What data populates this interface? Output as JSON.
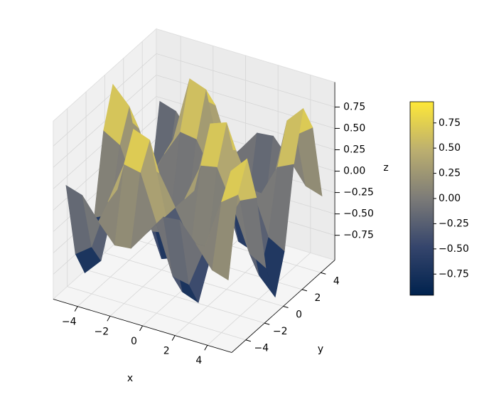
{
  "chart_data": {
    "type": "surface3d",
    "x_label": "x",
    "y_label": "y",
    "z_label": "z",
    "x": [
      -5,
      -4,
      -3,
      -2,
      -1,
      0,
      1,
      2,
      3,
      4,
      5
    ],
    "y": [
      -5,
      -4,
      -3,
      -2,
      -1,
      0,
      1,
      2,
      3,
      4,
      5
    ],
    "z": [
      [
        0.27,
        0.21,
        -0.04,
        -0.26,
        -0.24,
        0,
        0.24,
        0.26,
        0.04,
        -0.21,
        -0.27
      ],
      [
        -0.63,
        -0.49,
        0.09,
        0.59,
        0.55,
        0,
        -0.55,
        -0.59,
        -0.09,
        0.49,
        0.63
      ],
      [
        -0.95,
        -0.75,
        0.14,
        0.9,
        0.83,
        0,
        -0.83,
        -0.9,
        -0.14,
        0.75,
        0.95
      ],
      [
        -0.4,
        -0.31,
        0.06,
        0.38,
        0.35,
        0,
        -0.35,
        -0.38,
        -0.06,
        0.31,
        0.4
      ],
      [
        0.52,
        0.41,
        -0.08,
        -0.49,
        -0.45,
        0,
        0.45,
        0.49,
        0.08,
        -0.41,
        -0.52
      ],
      [
        0.96,
        0.76,
        -0.14,
        -0.91,
        -0.84,
        0,
        0.84,
        0.91,
        0.14,
        -0.76,
        -0.96
      ],
      [
        0.52,
        0.41,
        -0.08,
        -0.49,
        -0.45,
        0,
        0.45,
        0.49,
        0.08,
        -0.41,
        -0.52
      ],
      [
        -0.4,
        -0.31,
        0.06,
        0.38,
        0.35,
        0,
        -0.35,
        -0.38,
        -0.06,
        0.31,
        0.4
      ],
      [
        -0.95,
        -0.75,
        0.14,
        0.9,
        0.83,
        0,
        -0.83,
        -0.9,
        -0.14,
        0.75,
        0.95
      ],
      [
        -0.63,
        -0.49,
        0.09,
        0.59,
        0.55,
        0,
        -0.55,
        -0.59,
        -0.09,
        0.49,
        0.63
      ],
      [
        0.27,
        0.21,
        -0.04,
        -0.26,
        -0.24,
        0,
        0.24,
        0.26,
        0.04,
        -0.21,
        -0.27
      ]
    ],
    "xlim": [
      -5.5,
      5.5
    ],
    "ylim": [
      -5.5,
      5.5
    ],
    "zlim": [
      -1.04,
      1.04
    ],
    "xticks": [
      {
        "value": -4,
        "label": "−4"
      },
      {
        "value": -2,
        "label": "−2"
      },
      0,
      2,
      4
    ],
    "yticks": [
      {
        "value": -4,
        "label": "−4"
      },
      {
        "value": -2,
        "label": "−2"
      },
      0,
      2,
      4
    ],
    "zticks": [
      {
        "value": -0.75,
        "label": "−0.75"
      },
      {
        "value": -0.5,
        "label": "−0.50"
      },
      {
        "value": -0.25,
        "label": "−0.25"
      },
      {
        "value": 0,
        "label": "0.00"
      },
      0.25,
      {
        "value": 0.5,
        "label": "0.50"
      },
      0.75
    ],
    "colormap": [
      "#00224e",
      "#35456c",
      "#7c7b78",
      "#bcaf6f",
      "#fee838"
    ],
    "colorbar": {
      "lim": [
        -0.96,
        0.96
      ],
      "ticks": [
        {
          "value": -0.75,
          "label": "−0.75"
        },
        {
          "value": -0.5,
          "label": "−0.50"
        },
        {
          "value": -0.25,
          "label": "−0.25"
        },
        {
          "value": 0,
          "label": "0.00"
        },
        0.25,
        {
          "value": 0.5,
          "label": "0.50"
        },
        0.75
      ]
    },
    "grid": true
  }
}
